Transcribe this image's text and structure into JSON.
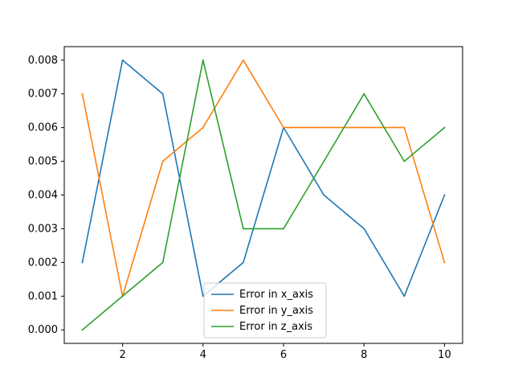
{
  "chart_data": {
    "type": "line",
    "title": "",
    "xlabel": "",
    "ylabel": "",
    "x": [
      1,
      2,
      3,
      4,
      5,
      6,
      7,
      8,
      9,
      10
    ],
    "xlim": [
      0.55,
      10.45
    ],
    "ylim": [
      -0.0004,
      0.0084
    ],
    "xticks": [
      2,
      4,
      6,
      8,
      10
    ],
    "xtick_labels": [
      "2",
      "4",
      "6",
      "8",
      "10"
    ],
    "yticks": [
      0,
      0.001,
      0.002,
      0.003,
      0.004,
      0.005,
      0.006,
      0.007,
      0.008
    ],
    "ytick_labels": [
      "0.000",
      "0.001",
      "0.002",
      "0.003",
      "0.004",
      "0.005",
      "0.006",
      "0.007",
      "0.008"
    ],
    "grid": false,
    "legend_position": "lower-center",
    "series": [
      {
        "name": "Error in x_axis",
        "color": "#1f77b4",
        "values": [
          0.002,
          0.008,
          0.007,
          0.001,
          0.002,
          0.006,
          0.004,
          0.003,
          0.001,
          0.004
        ]
      },
      {
        "name": "Error in y_axis",
        "color": "#ff7f0e",
        "values": [
          0.007,
          0.001,
          0.005,
          0.006,
          0.008,
          0.006,
          0.006,
          0.006,
          0.006,
          0.002
        ]
      },
      {
        "name": "Error in z_axis",
        "color": "#2ca02c",
        "values": [
          0.0,
          0.001,
          0.002,
          0.008,
          0.003,
          0.003,
          0.005,
          0.007,
          0.005,
          0.006
        ]
      }
    ]
  }
}
